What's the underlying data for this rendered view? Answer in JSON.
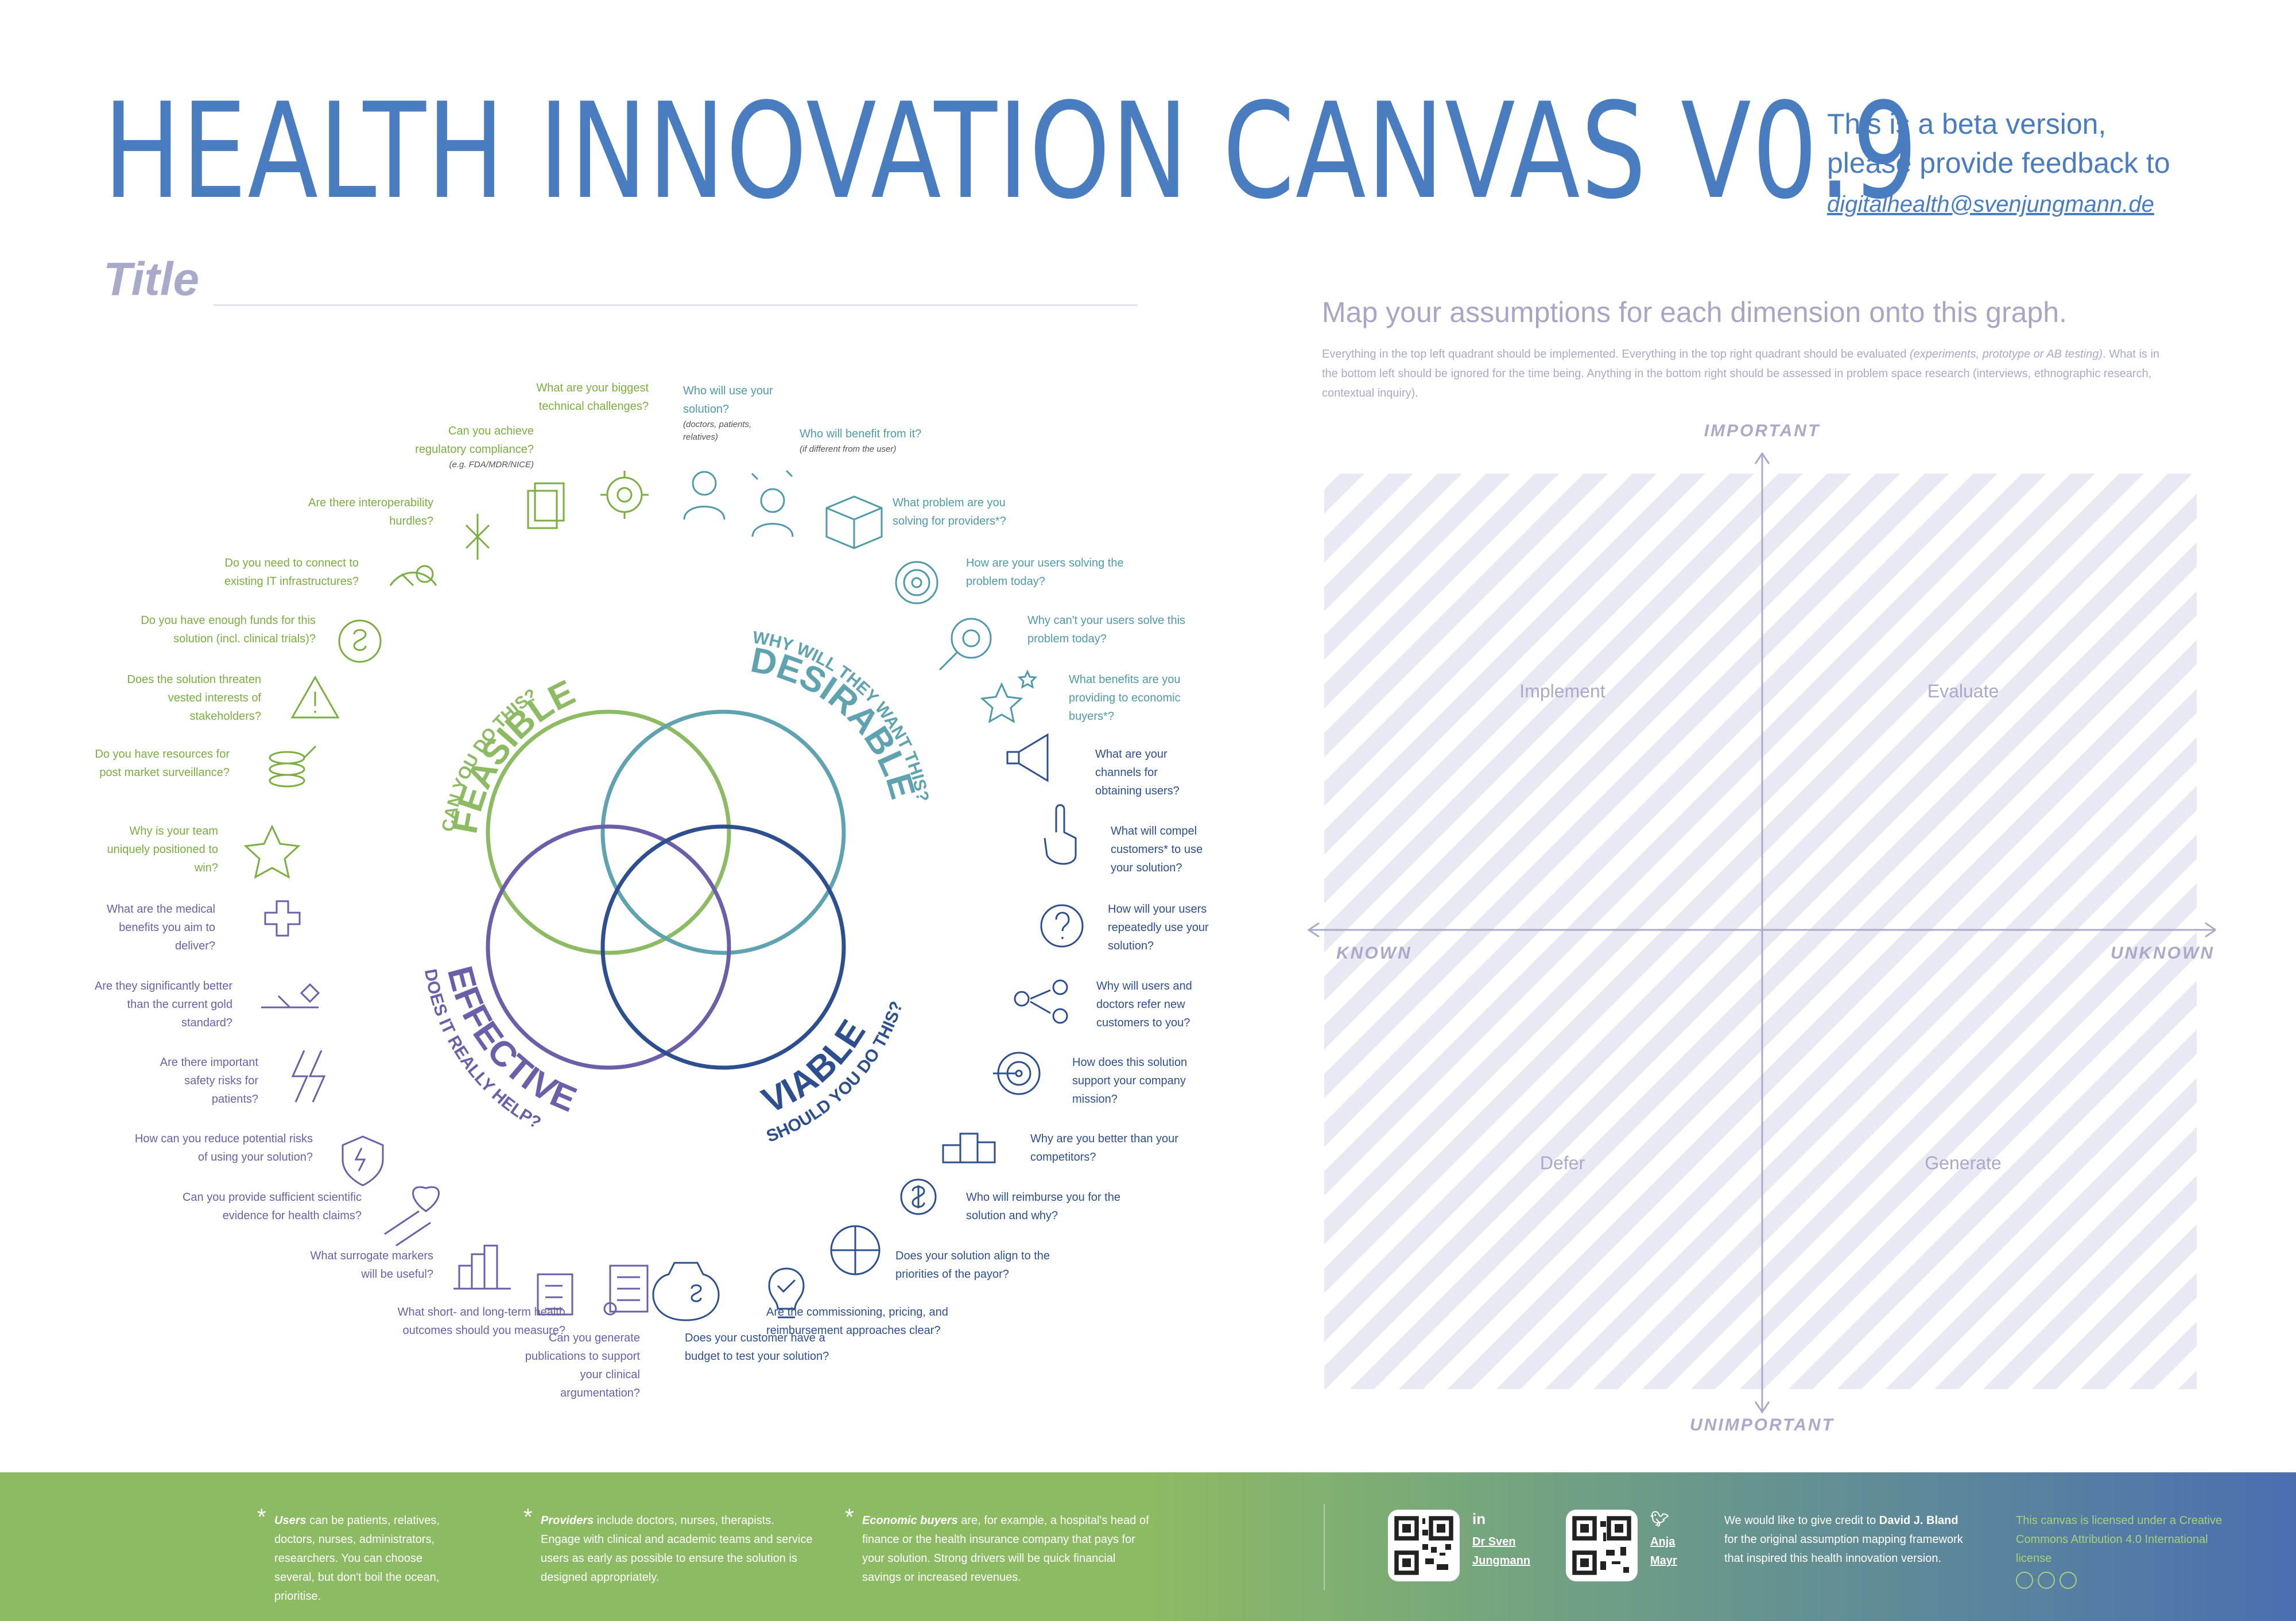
{
  "header": {
    "title": "HEALTH INNOVATION CANVAS V0.9",
    "beta_line1": "This is a beta version,",
    "beta_line2": "please provide feedback to",
    "email": "digitalhealth@svenjungmann.de"
  },
  "title_field": {
    "label": "Title"
  },
  "colors": {
    "blue": "#4a7cc0",
    "green": "#8dbb63",
    "teal": "#5fa3b0",
    "purple": "#6a5fa8",
    "navy": "#2e4f8f",
    "grey": "#a9a9c9"
  },
  "venn": {
    "feasible": {
      "question": "CAN YOU DO THIS?",
      "label": "FEASIBLE"
    },
    "desirable": {
      "question": "WHY WILL THEY WANT THIS?",
      "label": "DESIRABLE"
    },
    "effective": {
      "question": "DOES IT REALLY HELP?",
      "label": "EFFECTIVE"
    },
    "viable": {
      "question": "SHOULD YOU DO THIS?",
      "label": "VIABLE"
    }
  },
  "questions": {
    "q1": {
      "text": "What are your biggest technical challenges?"
    },
    "q2": {
      "text": "Who will use your solution?",
      "note": "(doctors, patients, relatives)"
    },
    "q3": {
      "text": "Who will benefit from it?",
      "note": "(if different from the user)"
    },
    "q4": {
      "text": "Can you achieve regulatory compliance?",
      "note": "(e.g. FDA/MDR/NICE)"
    },
    "q5": {
      "text": "Are there interoperability hurdles?"
    },
    "q6": {
      "text": "What problem are you solving for providers*?"
    },
    "q7": {
      "text": "Do you need to connect to existing IT infrastructures?"
    },
    "q8": {
      "text": "How are your users solving the problem today?"
    },
    "q9": {
      "text": "Do you have enough funds for this solution (incl. clinical trials)?"
    },
    "q10": {
      "text": "Why can't your users solve this problem today?"
    },
    "q11": {
      "text": "Does the solution threaten vested interests of stakeholders?"
    },
    "q12": {
      "text": "What benefits are you providing to economic buyers*?"
    },
    "q13": {
      "text": "Do you have resources for post market surveillance?"
    },
    "q14": {
      "text": "What are your channels for obtaining users?"
    },
    "q15": {
      "text": "Why is your team uniquely positioned to win?"
    },
    "q16": {
      "text": "What will compel customers* to use your solution?"
    },
    "q17": {
      "text": "What are the medical benefits you aim to deliver?"
    },
    "q18": {
      "text": "How will your users repeatedly use your solution?"
    },
    "q19": {
      "text": "Are they significantly better than the current gold standard?"
    },
    "q20": {
      "text": "Why will users and doctors refer new customers to you?"
    },
    "q21": {
      "text": "Are there important safety risks for patients?"
    },
    "q22": {
      "text": "How does this solution support your company mission?"
    },
    "q23": {
      "text": "How can you reduce potential risks of using your solution?"
    },
    "q24": {
      "text": "Why are you better than your competitors?"
    },
    "q25": {
      "text": "Can you provide sufficient scientific evidence for health claims?"
    },
    "q26": {
      "text": "Who will reimburse you for the solution and why?"
    },
    "q27": {
      "text": "What surrogate markers will be useful?"
    },
    "q28": {
      "text": "Does your solution align to the priorities of the payor?"
    },
    "q29": {
      "text": "What short- and long-term health outcomes should you measure?"
    },
    "q30": {
      "text": "Are the commissioning, pricing, and reimbursement approaches clear?"
    },
    "q31": {
      "text": "Can you generate publications to support your clinical argumentation?"
    },
    "q32": {
      "text": "Does your customer have a budget to test your solution?"
    }
  },
  "map": {
    "title": "Map your assumptions for each dimension onto this graph.",
    "desc_a": "Everything in the top left quadrant should be implemented. Everything in the top right quadrant should be evaluated ",
    "desc_b": "(experiments, prototype or AB testing)",
    "desc_c": ". What is in the bottom left should be ignored for the time being. Anything in the bottom right should be assessed in problem space research (interviews, ethnographic research, contextual inquiry).",
    "axis_top": "IMPORTANT",
    "axis_bottom": "UNIMPORTANT",
    "axis_left": "KNOWN",
    "axis_right": "UNKNOWN",
    "q_tl": "Implement",
    "q_tr": "Evaluate",
    "q_bl": "Defer",
    "q_br": "Generate"
  },
  "footer": {
    "users_term": "Users",
    "users_text": " can be patients, relatives, doctors, nurses, administrators, researchers. You can choose several, but don't boil the ocean, prioritise.",
    "providers_term": "Providers",
    "providers_text": " include doctors, nurses, therapists. Engage with clinical and academic teams and service users as early as possible to ensure the solution is designed appropriately.",
    "buyers_term": "Economic buyers",
    "buyers_text": " are, for example, a hospital's head of finance or the health insurance company that pays for your solution. Strong drivers will be quick financial savings or increased revenues.",
    "author1_l1": "Dr Sven",
    "author1_l2": "Jungmann",
    "author2_l1": "Anja",
    "author2_l2": "Mayr",
    "credit_a": "We would like to give credit to ",
    "credit_name": "David J. Bland",
    "credit_b": " for the original assumption mapping framework that inspired this health innovation version.",
    "license": "This canvas is licensed under a Creative Commons Attribution 4.0 International license"
  }
}
